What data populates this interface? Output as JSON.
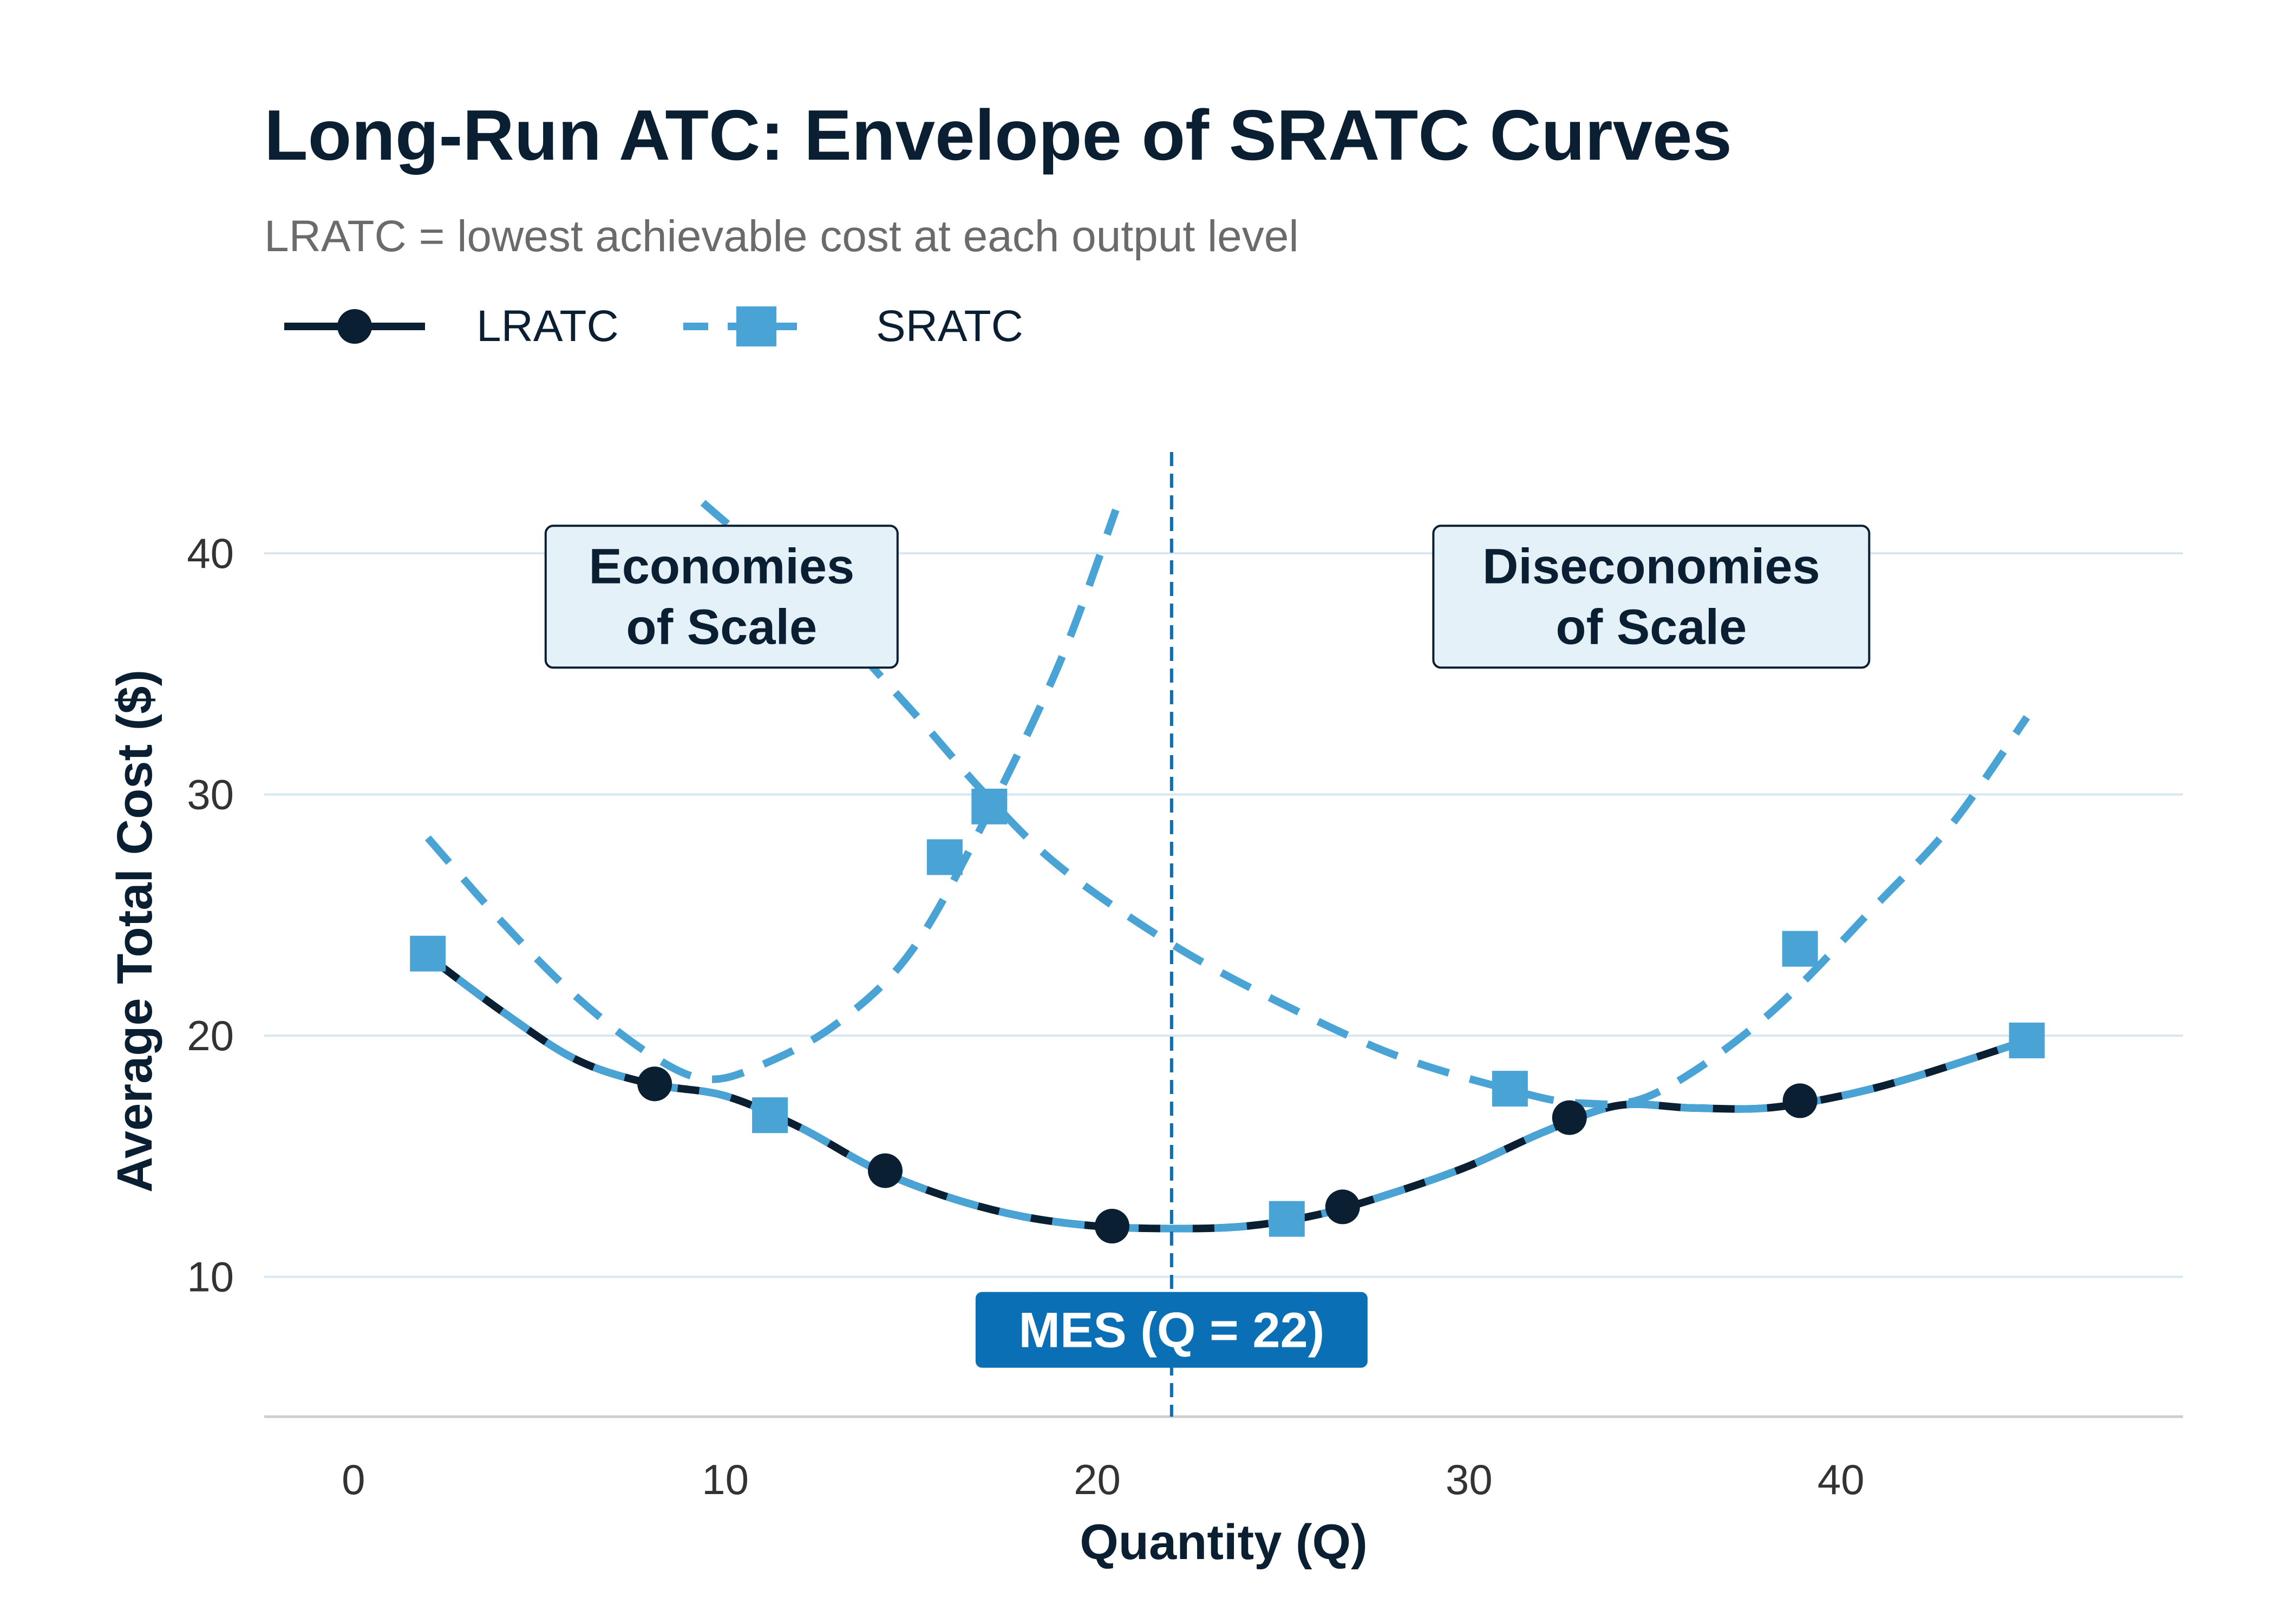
{
  "chart_data": {
    "type": "line",
    "title": "Long-Run ATC: Envelope of SRATC Curves",
    "subtitle": "LRATC = lowest achievable cost at each output level",
    "xlabel": "Quantity (Q)",
    "ylabel": "Average Total Cost ($)",
    "xlim": [
      -2.4,
      49.2
    ],
    "ylim": [
      4.2,
      44.2
    ],
    "x_ticks": [
      0,
      10,
      20,
      30,
      40
    ],
    "y_ticks": [
      10,
      20,
      30,
      40
    ],
    "grid": "horizontal",
    "legend_position": "top-left",
    "series": [
      {
        "name": "LRATC",
        "style": "solid",
        "marker": "circle",
        "color": "#0b1f33",
        "curve": [
          [
            2,
            23.3
          ],
          [
            4,
            21
          ],
          [
            6,
            19
          ],
          [
            8,
            18
          ],
          [
            10,
            17.5
          ],
          [
            12,
            16.2
          ],
          [
            14,
            14.5
          ],
          [
            16,
            13.3
          ],
          [
            18,
            12.5
          ],
          [
            20,
            12.1
          ],
          [
            22,
            12
          ],
          [
            24,
            12.1
          ],
          [
            26,
            12.6
          ],
          [
            28,
            13.5
          ],
          [
            30,
            14.6
          ],
          [
            32,
            16
          ],
          [
            34,
            17.1
          ],
          [
            36,
            17
          ],
          [
            38,
            17
          ],
          [
            40,
            17.5
          ],
          [
            42,
            18.3
          ],
          [
            45,
            19.8
          ]
        ],
        "markers": [
          [
            8.1,
            18
          ],
          [
            14.3,
            14.4
          ],
          [
            20.4,
            12.1
          ],
          [
            26.6,
            12.9
          ],
          [
            32.7,
            16.6
          ],
          [
            38.9,
            17.3
          ]
        ]
      },
      {
        "name": "SRATC",
        "style": "dashed",
        "marker": "square",
        "color": "#4aa3d5",
        "curves": [
          [
            [
              2,
              28.2
            ],
            [
              4,
              24.7
            ],
            [
              6,
              21.6
            ],
            [
              8,
              19.2
            ],
            [
              9.5,
              18.2
            ],
            [
              11,
              18.8
            ],
            [
              13,
              20.5
            ],
            [
              15,
              23.5
            ],
            [
              17,
              29
            ],
            [
              19,
              35.5
            ],
            [
              20.5,
              41.8
            ]
          ],
          [
            [
              9.4,
              42.1
            ],
            [
              12,
              38.5
            ],
            [
              15,
              33.5
            ],
            [
              17,
              30
            ],
            [
              19,
              27
            ],
            [
              22,
              23.8
            ],
            [
              25,
              21.3
            ],
            [
              28,
              19.2
            ],
            [
              31,
              17.8
            ],
            [
              33,
              17.2
            ],
            [
              35,
              17.6
            ],
            [
              38,
              20.8
            ],
            [
              41,
              25.5
            ],
            [
              43,
              28.8
            ],
            [
              45,
              33.2
            ]
          ]
        ],
        "overlay_curve": [
          [
            2,
            23.3
          ],
          [
            4,
            21
          ],
          [
            6,
            19
          ],
          [
            8,
            18
          ],
          [
            10,
            17.5
          ],
          [
            12,
            16.2
          ],
          [
            14,
            14.5
          ],
          [
            16,
            13.3
          ],
          [
            18,
            12.5
          ],
          [
            20,
            12.1
          ],
          [
            22,
            12
          ],
          [
            24,
            12.1
          ],
          [
            26,
            12.6
          ],
          [
            28,
            13.5
          ],
          [
            30,
            14.6
          ],
          [
            32,
            16
          ],
          [
            34,
            17.1
          ],
          [
            36,
            17
          ],
          [
            38,
            17
          ],
          [
            40,
            17.5
          ],
          [
            42,
            18.3
          ],
          [
            45,
            19.8
          ]
        ],
        "markers": [
          [
            2,
            23.4
          ],
          [
            11.2,
            16.7
          ],
          [
            15.9,
            27.4
          ],
          [
            17.1,
            29.5
          ],
          [
            25.1,
            12.4
          ],
          [
            31.1,
            17.8
          ],
          [
            38.9,
            23.6
          ],
          [
            45,
            19.8
          ]
        ]
      }
    ],
    "annotations": [
      {
        "lines": [
          "Economies",
          "of Scale"
        ],
        "x": 9.9,
        "y": 38.2
      },
      {
        "lines": [
          "Diseconomies",
          "of Scale"
        ],
        "x": 34.9,
        "y": 38.2
      }
    ],
    "vline": {
      "x": 22,
      "label": "MES (Q = 22)",
      "label_y": 7.8
    }
  },
  "colors": {
    "lratc": "#0b1f33",
    "sratc": "#4aa3d5",
    "mes": "#0a6fb5",
    "grid": "#d6e7f3",
    "annotation_fill": "#e4f1f9"
  }
}
